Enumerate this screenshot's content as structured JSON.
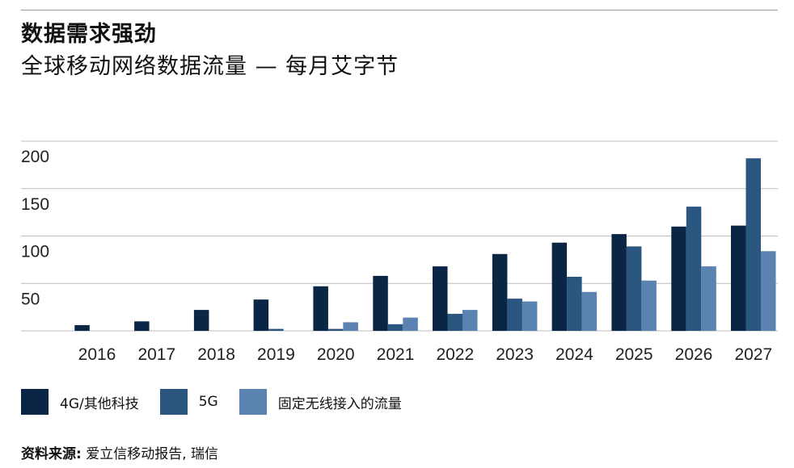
{
  "title": "数据需求强劲",
  "subtitle": "全球移动网络数据流量 — 每月艾字节",
  "source": {
    "label": "资料来源:",
    "text": " 爱立信移动报告, 瑞信"
  },
  "chart_data": {
    "type": "bar",
    "categories": [
      "2016",
      "2017",
      "2018",
      "2019",
      "2020",
      "2021",
      "2022",
      "2023",
      "2024",
      "2025",
      "2026",
      "2027"
    ],
    "series": [
      {
        "name": "4G/其他科技",
        "color": "#0b2545",
        "values": [
          6,
          10,
          22,
          33,
          47,
          58,
          68,
          81,
          93,
          102,
          110,
          111
        ]
      },
      {
        "name": "5G",
        "color": "#2a5680",
        "values": [
          0,
          0,
          0,
          2,
          2,
          7,
          18,
          34,
          57,
          89,
          131,
          182
        ]
      },
      {
        "name": "固定无线接入的流量",
        "color": "#5b83b1",
        "values": [
          0,
          0,
          0,
          0,
          9,
          14,
          22,
          31,
          41,
          53,
          68,
          84
        ]
      }
    ],
    "ylim": [
      0,
      200
    ],
    "yticks": [
      50,
      100,
      150,
      200
    ],
    "grid": true,
    "legend_position": "bottom"
  }
}
